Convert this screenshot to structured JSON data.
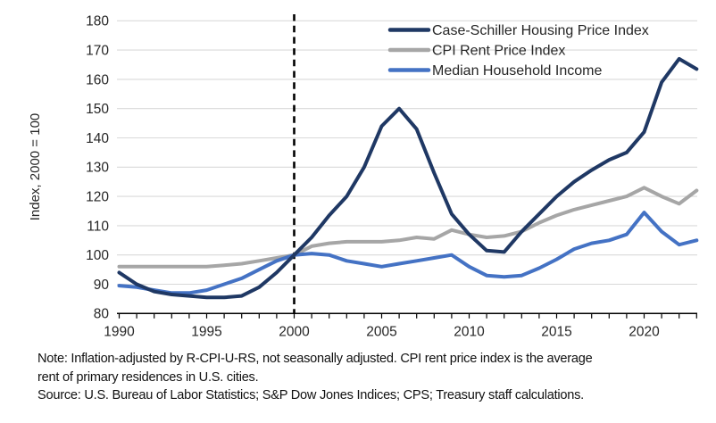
{
  "figure": {
    "y_axis_label": "Index, 2000 = 100",
    "note_line1": "Note: Inflation-adjusted by R-CPI-U-RS, not seasonally adjusted. CPI rent price index is the average",
    "note_line2": "rent of primary residences in U.S. cities.",
    "source_line": "Source: U.S. Bureau of Labor Statistics; S&P Dow Jones Indices; CPS; Treasury staff calculations."
  },
  "chart_data": {
    "type": "line",
    "title": "",
    "xlabel": "",
    "ylabel": "Index, 2000 = 100",
    "xlim": [
      1990,
      2023
    ],
    "ylim": [
      80,
      180
    ],
    "yticks": [
      80,
      90,
      100,
      110,
      120,
      130,
      140,
      150,
      160,
      170,
      180
    ],
    "xticks": [
      1990,
      1995,
      2000,
      2005,
      2010,
      2015,
      2020
    ],
    "minor_xtick_every_year": true,
    "grid": "horizontal",
    "gridline_color": "#d9d9d9",
    "axis_color": "#000000",
    "tick_label_color": "#262626",
    "vline": {
      "x": 2000,
      "style": "dashed",
      "color": "#000000"
    },
    "legend_position": "top-right",
    "x": [
      1990,
      1991,
      1992,
      1993,
      1994,
      1995,
      1996,
      1997,
      1998,
      1999,
      2000,
      2001,
      2002,
      2003,
      2004,
      2005,
      2006,
      2007,
      2008,
      2009,
      2010,
      2011,
      2012,
      2013,
      2014,
      2015,
      2016,
      2017,
      2018,
      2019,
      2020,
      2021,
      2022,
      2023
    ],
    "series": [
      {
        "name": "Case-Schiller Housing Price Index",
        "color": "#1f3864",
        "values": [
          94,
          90,
          87.5,
          86.5,
          86,
          85.5,
          85.5,
          86,
          89,
          94,
          100,
          106,
          113.5,
          120,
          130,
          144,
          150,
          143,
          128,
          114,
          107,
          101.5,
          101,
          108,
          114,
          120,
          125,
          129,
          132.5,
          135,
          142,
          159,
          167,
          163.5
        ]
      },
      {
        "name": "CPI Rent Price Index",
        "color": "#a6a6a6",
        "values": [
          96,
          96,
          96,
          96,
          96,
          96,
          96.5,
          97,
          98,
          99,
          100,
          103,
          104,
          104.5,
          104.5,
          104.5,
          105,
          106,
          105.5,
          108.5,
          107,
          106,
          106.5,
          108,
          111,
          113.5,
          115.5,
          117,
          118.5,
          120,
          123,
          120,
          117.5,
          122
        ]
      },
      {
        "name": "Median Household Income",
        "color": "#4472c4",
        "values": [
          89.5,
          89,
          88,
          87,
          87,
          88,
          90,
          92,
          95,
          98,
          100,
          100.5,
          100,
          98,
          97,
          96,
          97,
          98,
          99,
          100,
          96,
          93,
          92.5,
          93,
          95.5,
          98.5,
          102,
          104,
          105,
          107,
          114.5,
          108,
          103.5,
          105
        ]
      }
    ]
  }
}
